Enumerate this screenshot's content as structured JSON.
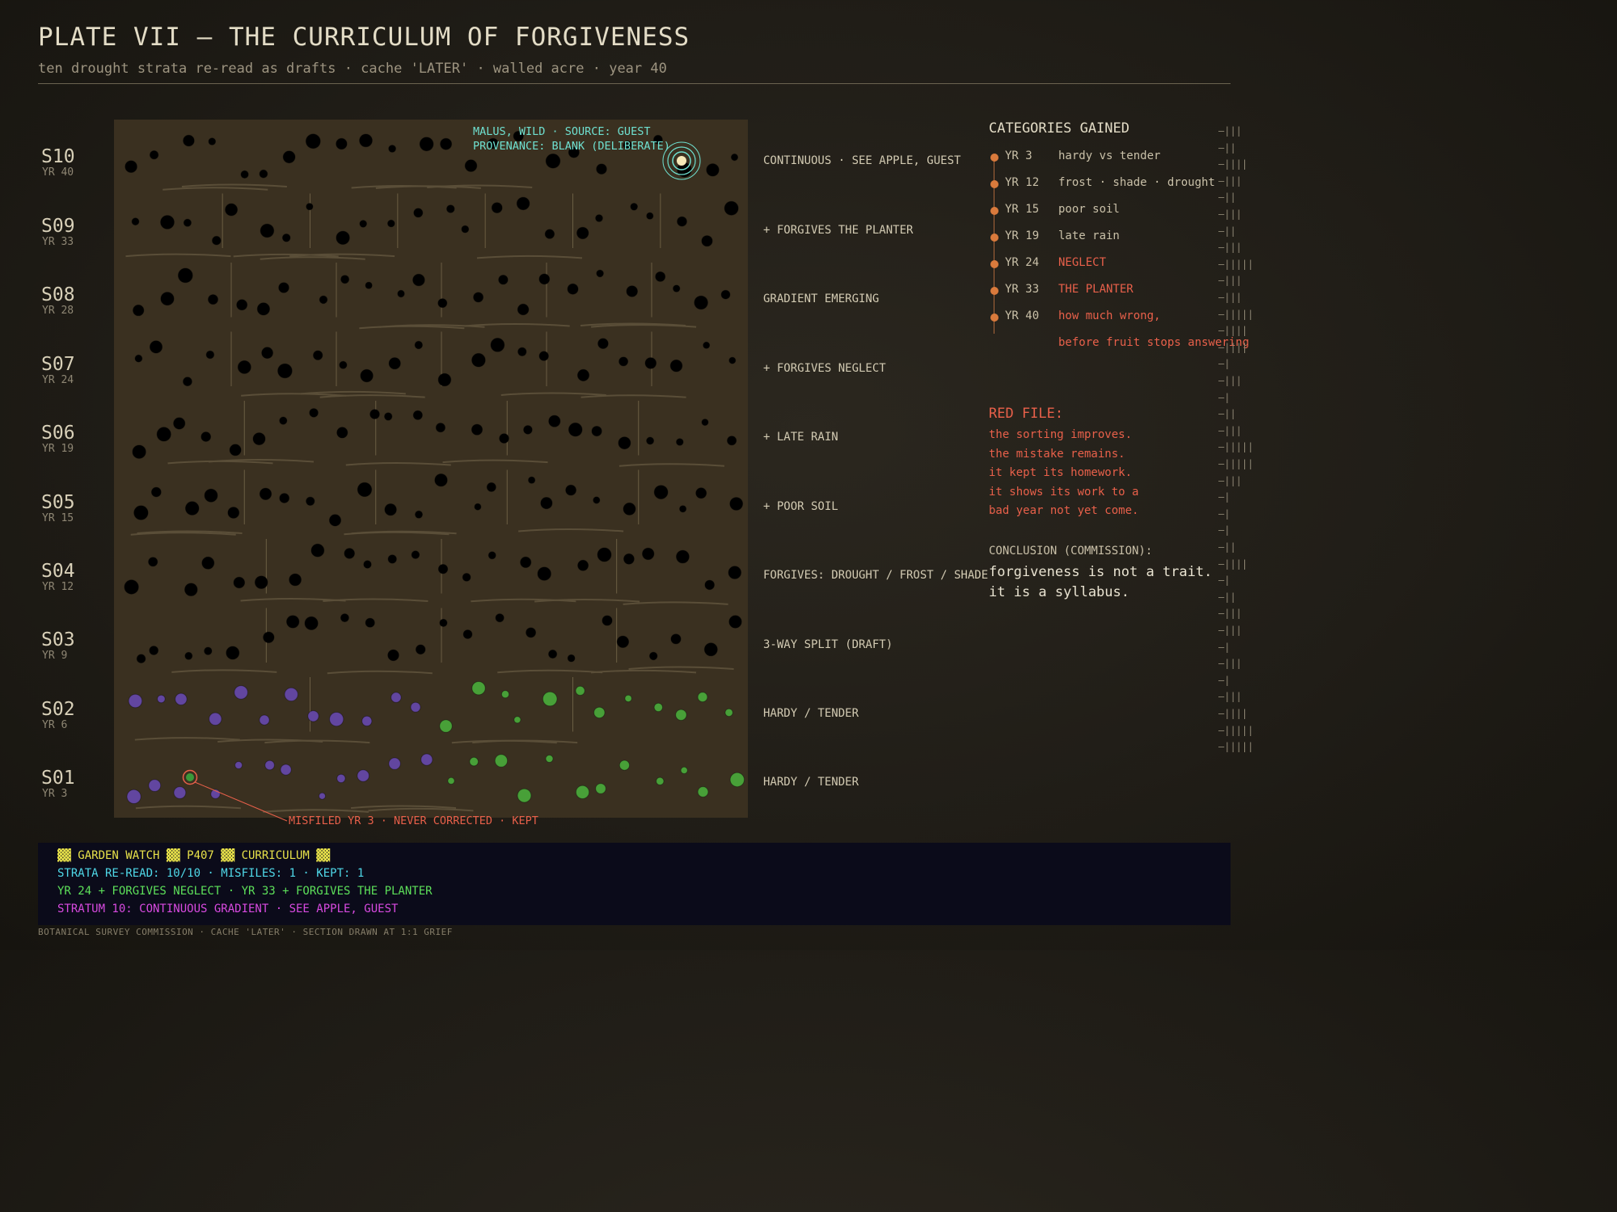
{
  "header": {
    "title": "PLATE VII — THE CURRICULUM OF FORGIVENESS",
    "subtitle": "ten drought strata re-read as drafts · cache 'LATER' · walled acre · year 40"
  },
  "strata": [
    {
      "id": "S10",
      "year": "YR 40",
      "note": "CONTINUOUS · SEE APPLE, GUEST"
    },
    {
      "id": "S09",
      "year": "YR 33",
      "note": "+ FORGIVES THE PLANTER"
    },
    {
      "id": "S08",
      "year": "YR 28",
      "note": "GRADIENT EMERGING"
    },
    {
      "id": "S07",
      "year": "YR 24",
      "note": "+ FORGIVES NEGLECT"
    },
    {
      "id": "S06",
      "year": "YR 19",
      "note": "+ LATE RAIN"
    },
    {
      "id": "S05",
      "year": "YR 15",
      "note": "+ POOR SOIL"
    },
    {
      "id": "S04",
      "year": "YR 12",
      "note": "FORGIVES: DROUGHT / FROST / SHADE"
    },
    {
      "id": "S03",
      "year": "YR 9",
      "note": "3-WAY SPLIT (DRAFT)"
    },
    {
      "id": "S02",
      "year": "YR 6",
      "note": "HARDY / TENDER"
    },
    {
      "id": "S01",
      "year": "YR 3",
      "note": "HARDY / TENDER"
    }
  ],
  "annotations": {
    "apple_line1": "MALUS, WILD · SOURCE: GUEST",
    "apple_line2": "PROVENANCE: BLANK (DELIBERATE)",
    "misfile": "MISFILED YR 3 · NEVER CORRECTED · KEPT"
  },
  "categories": {
    "heading": "CATEGORIES GAINED",
    "items": [
      {
        "year": "YR 3",
        "text": "hardy vs tender",
        "flag": false
      },
      {
        "year": "YR 12",
        "text": "frost · shade · drought",
        "flag": false
      },
      {
        "year": "YR 15",
        "text": "poor soil",
        "flag": false
      },
      {
        "year": "YR 19",
        "text": "late rain",
        "flag": false
      },
      {
        "year": "YR 24",
        "text": "NEGLECT",
        "flag": true
      },
      {
        "year": "YR 33",
        "text": "THE PLANTER",
        "flag": true
      },
      {
        "year": "YR 40",
        "text": "how much wrong,",
        "flag": true
      }
    ],
    "continuation": "before fruit stops answering"
  },
  "red_file": {
    "heading": "RED FILE:",
    "lines": [
      "the sorting improves.",
      "the mistake remains.",
      "it kept its homework.",
      "it shows its work to a",
      "bad year not yet come."
    ]
  },
  "conclusion": {
    "heading": "CONCLUSION (COMMISSION):",
    "lines": [
      "forgiveness is not a trait.",
      "it is a syllabus."
    ]
  },
  "tally_marks": [
    "–|||",
    "–||",
    "–||||",
    "–|||",
    "–||",
    "–|||",
    "–||",
    "–|||",
    "–|||||",
    "–|||",
    "–|||",
    "–|||||",
    "–||||",
    "–||||",
    "–|",
    "–|||",
    "–|",
    "–||",
    "–|||",
    "–|||||",
    "–|||||",
    "–|||",
    "–|",
    "–|",
    "–|",
    "–||",
    "–||||",
    "–|",
    "–||",
    "–|||",
    "–|||",
    "–|",
    "–|||",
    "–|",
    "–|||",
    "–||||",
    "–|||||",
    "–|||||"
  ],
  "terminal": {
    "line1": "▓▓ GARDEN WATCH ▓▓ P407 ▓▓ CURRICULUM ▓▓",
    "line2": "STRATA RE-READ: 10/10 · MISFILES: 1 · KEPT: 1",
    "line3": "YR 24 + FORGIVES NEGLECT · YR 33 + FORGIVES THE PLANTER",
    "line4": "STRATUM 10: CONTINUOUS GRADIENT · SEE APPLE, GUEST",
    "colors": {
      "line1": "#e8e24a",
      "line2": "#4fd8e8",
      "line3": "#5de05a",
      "line4": "#d84ae0"
    }
  },
  "footer": "BOTANICAL SURVEY COMMISSION · CACHE 'LATER' · SECTION DRAWN AT 1:1 GRIEF",
  "colors": {
    "background": "#201d17",
    "panel": "#3a3020",
    "accent_red": "#e8604a",
    "accent_cyan": "#6fe0d0",
    "timeline_dot": "#d97a3c"
  }
}
